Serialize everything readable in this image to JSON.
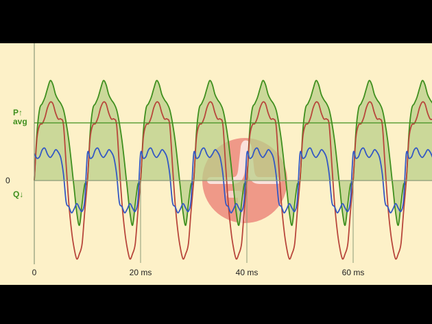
{
  "chart_data": {
    "type": "line",
    "xlabel": "",
    "ylabel": "",
    "x_range_ms": [
      0,
      75
    ],
    "x_ticks": [
      {
        "value": 0,
        "label": "0"
      },
      {
        "value": 20,
        "label": "20 ms"
      },
      {
        "value": 40,
        "label": "40 ms"
      },
      {
        "value": 60,
        "label": "60 ms"
      }
    ],
    "y_labels": {
      "zero": "0",
      "avg_top": "P↑",
      "avg_bottom": "avg",
      "negative": "Q↓"
    },
    "y_range": [
      -1.0,
      1.3
    ],
    "period_ms": 10,
    "grid": false,
    "series": [
      {
        "key": "power",
        "color": "#3f8f1e",
        "fill": "#b9cf8a",
        "x": [
          0,
          0.5,
          1,
          1.5,
          2,
          2.5,
          3,
          3.5,
          4,
          4.5,
          5,
          5.5,
          6,
          6.5,
          7,
          7.5,
          8,
          8.5,
          9,
          9.5,
          10
        ],
        "values": [
          0,
          0.62,
          0.93,
          1.0,
          1.08,
          1.2,
          1.3,
          1.25,
          1.12,
          1.05,
          1.0,
          0.92,
          0.75,
          0.52,
          0.22,
          -0.1,
          -0.42,
          -0.58,
          -0.3,
          -0.05,
          0
        ]
      },
      {
        "key": "current",
        "color": "#b8463b",
        "x": [
          0,
          0.5,
          1,
          1.5,
          2,
          2.5,
          3,
          3.5,
          4,
          4.5,
          5,
          5.5,
          6,
          6.5,
          7,
          7.5,
          8,
          8.5,
          9,
          9.5,
          10
        ],
        "values": [
          0,
          0.55,
          0.72,
          0.74,
          0.82,
          0.95,
          1.02,
          1.0,
          0.88,
          0.8,
          0.8,
          0.72,
          0.2,
          -0.3,
          -0.65,
          -0.88,
          -1.02,
          -0.95,
          -0.82,
          -0.4,
          0
        ]
      },
      {
        "key": "voltage",
        "color": "#3358c4",
        "x": [
          0,
          0.5,
          1,
          1.5,
          2,
          2.5,
          3,
          3.5,
          4,
          4.5,
          5,
          5.5,
          6,
          6.5,
          7,
          7.5,
          8,
          8.5,
          9,
          9.5,
          10
        ],
        "values": [
          0.35,
          0.29,
          0.31,
          0.4,
          0.42,
          0.34,
          0.3,
          0.34,
          0.4,
          0.37,
          0.29,
          0.08,
          -0.28,
          -0.34,
          -0.42,
          -0.37,
          -0.3,
          -0.36,
          -0.4,
          -0.25,
          0.35
        ]
      }
    ],
    "avg_value": 0.75
  },
  "colors": {
    "background": "#fdf1c8",
    "axis": "#8a9a78",
    "avg_line": "#3f8f1e",
    "label_green": "#3f8f1e",
    "label_dark": "#222222",
    "logo_red": "#ec8a7c",
    "logo_stroke": "#ffffff"
  },
  "logo_icon": "waveform-logo-icon"
}
